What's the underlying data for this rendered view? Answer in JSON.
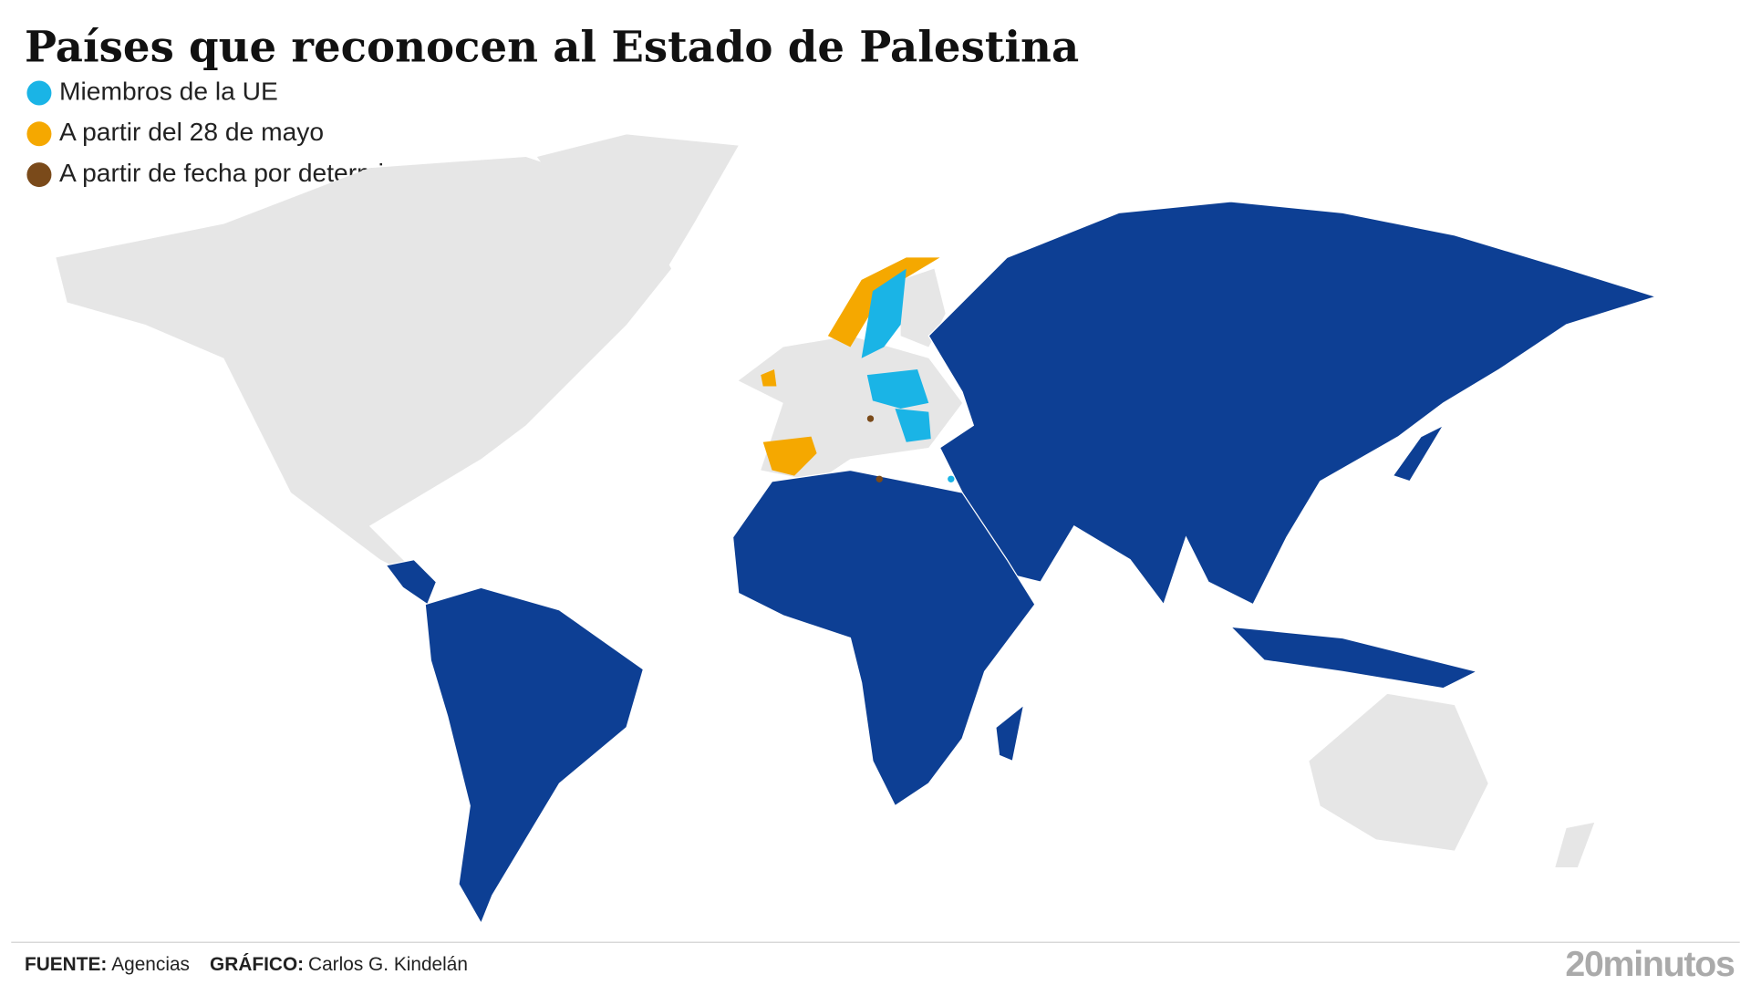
{
  "title": "Países que reconocen al Estado de Palestina",
  "legend": [
    {
      "label": "Miembros de la UE",
      "color": "#1ab4e6"
    },
    {
      "label": "A partir del 28 de mayo",
      "color": "#f5a800"
    },
    {
      "label": "A partir de fecha por determinar",
      "color": "#7a4a1a"
    }
  ],
  "footer": {
    "source_label": "FUENTE:",
    "source": "Agencias",
    "graphic_label": "GRÁFICO:",
    "graphic": "Carlos G. Kindelán",
    "logo": "20minutos"
  }
}
